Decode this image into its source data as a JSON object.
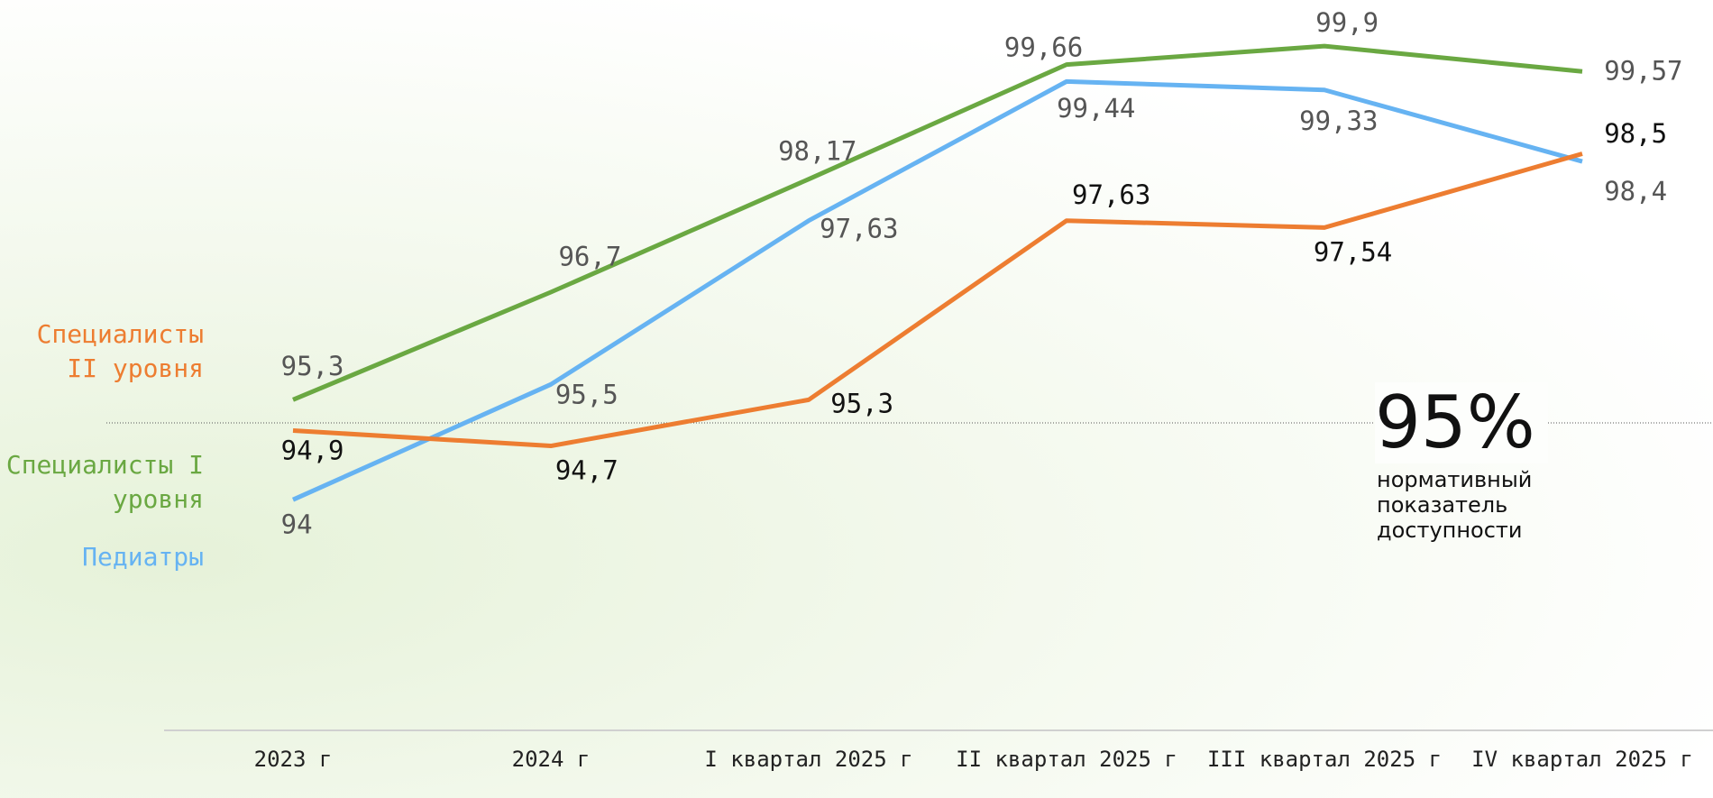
{
  "chart_data": {
    "type": "line",
    "categories": [
      "2023 г",
      "2024 г",
      "I квартал 2025 г",
      "II квартал 2025 г",
      "III квартал 2025 г",
      "IV квартал 2025 г"
    ],
    "series": [
      {
        "name": "Специалисты I уровня",
        "color": "#6aa842",
        "label_color": "#555555",
        "values": [
          95.3,
          96.7,
          98.17,
          99.66,
          99.9,
          99.57
        ],
        "value_labels": [
          "95,3",
          "96,7",
          "98,17",
          "99,66",
          "99,9",
          "99,57"
        ]
      },
      {
        "name": "Педиатры",
        "color": "#66b3f2",
        "label_color": "#555555",
        "values": [
          94,
          95.5,
          97.63,
          99.44,
          99.33,
          98.4
        ],
        "value_labels": [
          "94",
          "95,5",
          "97,63",
          "99,44",
          "99,33",
          "98,4"
        ]
      },
      {
        "name": "Специалисты II уровня",
        "color": "#ed7d31",
        "label_color": "#111111",
        "values": [
          94.9,
          94.7,
          95.3,
          97.63,
          97.54,
          98.5
        ],
        "value_labels": [
          "94,9",
          "94,7",
          "95,3",
          "97,63",
          "97,54",
          "98,5"
        ]
      }
    ],
    "ylim": [
      91,
      100.5
    ],
    "reference_line": {
      "value": 95,
      "label": "95%",
      "note": "нормативный показатель доступности"
    }
  }
}
